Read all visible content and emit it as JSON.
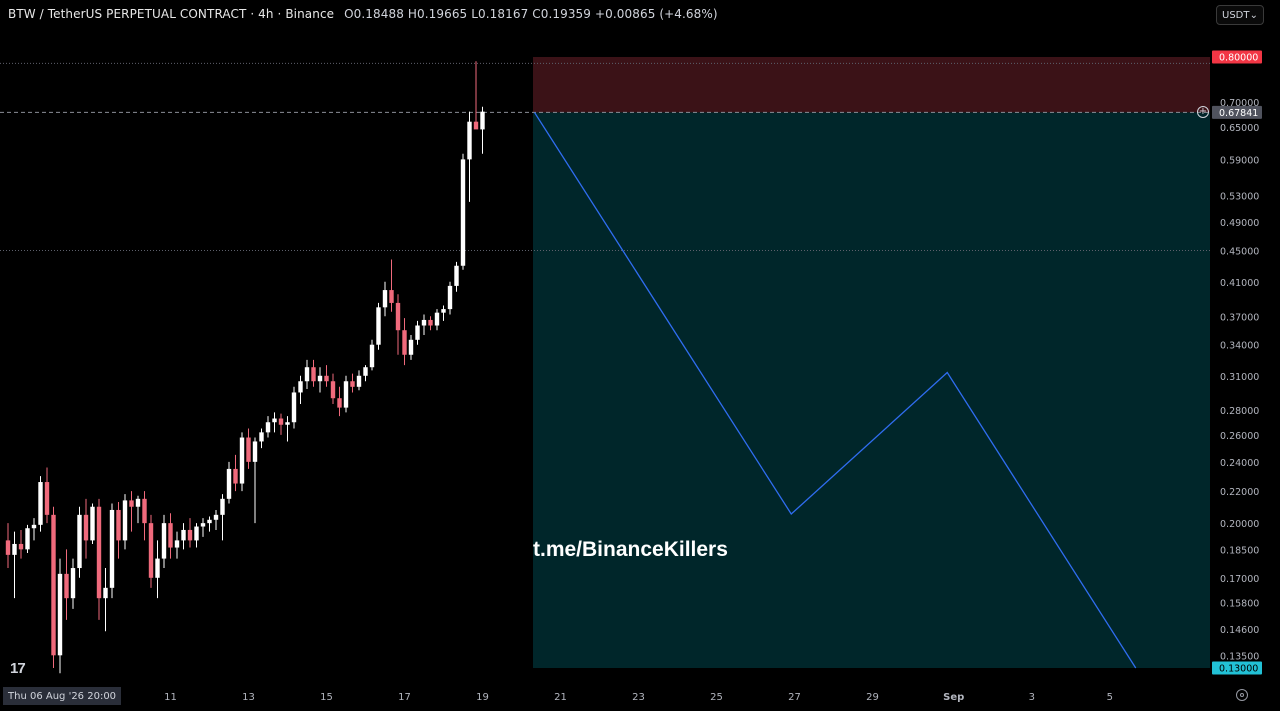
{
  "header": {
    "title": "BTW / TetherUS PERPETUAL CONTRACT · 4h · Binance",
    "ohlc": "O0.18488 H0.19665 L0.18167 C0.19359",
    "change": "+0.00865 (+4.68%)"
  },
  "currency": {
    "label": "USDT",
    "icon": "chevron-down-icon"
  },
  "watermark": "t.me/BinanceKillers",
  "date_badge": "Thu 06 Aug '26   20:00",
  "logo": "17",
  "colors": {
    "background": "#000000",
    "up": "#ffffff",
    "down": "#f06a7c",
    "stop_zone": "#3b1217",
    "target_zone": "#00262a",
    "projection": "#2f6df0",
    "stop_label": "#f23645",
    "target_label": "#22c1d6",
    "current_label": "#50535e"
  },
  "chart_data": {
    "type": "candlestick",
    "x_ticks": [
      {
        "label": "11",
        "index": 25
      },
      {
        "label": "13",
        "index": 37
      },
      {
        "label": "15",
        "index": 49
      },
      {
        "label": "17",
        "index": 61
      },
      {
        "label": "19",
        "index": 73
      },
      {
        "label": "21",
        "index": 85
      },
      {
        "label": "23",
        "index": 97
      },
      {
        "label": "25",
        "index": 109
      },
      {
        "label": "27",
        "index": 121
      },
      {
        "label": "29",
        "index": 133
      },
      {
        "label": "Sep",
        "index": 145.5
      },
      {
        "label": "3",
        "index": 157.5
      },
      {
        "label": "5",
        "index": 169.5
      }
    ],
    "y_ticks": [
      "0.70000",
      "0.65000",
      "0.59000",
      "0.53000",
      "0.49000",
      "0.45000",
      "0.41000",
      "0.37000",
      "0.34000",
      "0.31000",
      "0.28000",
      "0.26000",
      "0.24000",
      "0.22000",
      "0.20000",
      "0.18500",
      "0.17000",
      "0.15800",
      "0.14600",
      "0.13500"
    ],
    "y_tick_values": [
      0.7,
      0.65,
      0.59,
      0.53,
      0.49,
      0.45,
      0.41,
      0.37,
      0.34,
      0.31,
      0.28,
      0.26,
      0.24,
      0.22,
      0.2,
      0.185,
      0.17,
      0.158,
      0.146,
      0.135
    ],
    "ylim": [
      0.13,
      0.8
    ],
    "y_scale": "log",
    "candles": [
      [
        0.19,
        0.2,
        0.175,
        0.182
      ],
      [
        0.182,
        0.195,
        0.16,
        0.188
      ],
      [
        0.188,
        0.196,
        0.18,
        0.185
      ],
      [
        0.185,
        0.199,
        0.183,
        0.197
      ],
      [
        0.197,
        0.203,
        0.19,
        0.199
      ],
      [
        0.199,
        0.23,
        0.195,
        0.226
      ],
      [
        0.226,
        0.236,
        0.2,
        0.205
      ],
      [
        0.205,
        0.21,
        0.13,
        0.135
      ],
      [
        0.135,
        0.18,
        0.128,
        0.172
      ],
      [
        0.172,
        0.185,
        0.15,
        0.16
      ],
      [
        0.16,
        0.18,
        0.155,
        0.175
      ],
      [
        0.175,
        0.21,
        0.17,
        0.205
      ],
      [
        0.205,
        0.215,
        0.18,
        0.19
      ],
      [
        0.19,
        0.212,
        0.188,
        0.21
      ],
      [
        0.21,
        0.215,
        0.15,
        0.16
      ],
      [
        0.16,
        0.175,
        0.145,
        0.165
      ],
      [
        0.165,
        0.212,
        0.16,
        0.208
      ],
      [
        0.208,
        0.213,
        0.18,
        0.19
      ],
      [
        0.19,
        0.218,
        0.185,
        0.214
      ],
      [
        0.214,
        0.22,
        0.195,
        0.21
      ],
      [
        0.21,
        0.217,
        0.2,
        0.215
      ],
      [
        0.215,
        0.22,
        0.19,
        0.2
      ],
      [
        0.2,
        0.205,
        0.165,
        0.17
      ],
      [
        0.17,
        0.19,
        0.16,
        0.18
      ],
      [
        0.18,
        0.205,
        0.175,
        0.2
      ],
      [
        0.2,
        0.206,
        0.18,
        0.186
      ],
      [
        0.186,
        0.195,
        0.18,
        0.19
      ],
      [
        0.19,
        0.2,
        0.185,
        0.196
      ],
      [
        0.196,
        0.203,
        0.186,
        0.19
      ],
      [
        0.19,
        0.2,
        0.186,
        0.198
      ],
      [
        0.198,
        0.203,
        0.192,
        0.2
      ],
      [
        0.2,
        0.204,
        0.195,
        0.202
      ],
      [
        0.202,
        0.208,
        0.196,
        0.205
      ],
      [
        0.205,
        0.218,
        0.19,
        0.215
      ],
      [
        0.215,
        0.24,
        0.212,
        0.235
      ],
      [
        0.235,
        0.245,
        0.22,
        0.225
      ],
      [
        0.225,
        0.262,
        0.22,
        0.258
      ],
      [
        0.258,
        0.265,
        0.235,
        0.24
      ],
      [
        0.24,
        0.258,
        0.2,
        0.255
      ],
      [
        0.255,
        0.265,
        0.25,
        0.262
      ],
      [
        0.262,
        0.275,
        0.258,
        0.27
      ],
      [
        0.27,
        0.278,
        0.262,
        0.273
      ],
      [
        0.273,
        0.277,
        0.26,
        0.268
      ],
      [
        0.268,
        0.275,
        0.255,
        0.27
      ],
      [
        0.27,
        0.3,
        0.265,
        0.295
      ],
      [
        0.295,
        0.31,
        0.285,
        0.305
      ],
      [
        0.305,
        0.325,
        0.298,
        0.318
      ],
      [
        0.318,
        0.325,
        0.3,
        0.305
      ],
      [
        0.305,
        0.318,
        0.295,
        0.31
      ],
      [
        0.31,
        0.32,
        0.3,
        0.305
      ],
      [
        0.305,
        0.312,
        0.285,
        0.29
      ],
      [
        0.29,
        0.3,
        0.275,
        0.282
      ],
      [
        0.282,
        0.31,
        0.278,
        0.305
      ],
      [
        0.305,
        0.312,
        0.295,
        0.3
      ],
      [
        0.3,
        0.315,
        0.297,
        0.31
      ],
      [
        0.31,
        0.32,
        0.305,
        0.318
      ],
      [
        0.318,
        0.345,
        0.315,
        0.34
      ],
      [
        0.34,
        0.385,
        0.335,
        0.38
      ],
      [
        0.38,
        0.41,
        0.37,
        0.4
      ],
      [
        0.4,
        0.438,
        0.375,
        0.385
      ],
      [
        0.385,
        0.395,
        0.33,
        0.355
      ],
      [
        0.355,
        0.368,
        0.32,
        0.33
      ],
      [
        0.33,
        0.35,
        0.325,
        0.345
      ],
      [
        0.345,
        0.365,
        0.34,
        0.36
      ],
      [
        0.36,
        0.372,
        0.35,
        0.366
      ],
      [
        0.366,
        0.37,
        0.355,
        0.36
      ],
      [
        0.36,
        0.378,
        0.355,
        0.374
      ],
      [
        0.374,
        0.382,
        0.365,
        0.378
      ],
      [
        0.378,
        0.41,
        0.372,
        0.405
      ],
      [
        0.405,
        0.435,
        0.398,
        0.43
      ],
      [
        0.43,
        0.6,
        0.425,
        0.59
      ],
      [
        0.59,
        0.68,
        0.52,
        0.66
      ],
      [
        0.66,
        0.79,
        0.65,
        0.645
      ],
      [
        0.645,
        0.69,
        0.6,
        0.68
      ]
    ],
    "levels": [
      {
        "name": "stop",
        "value": 0.8,
        "label": "0.80000"
      },
      {
        "name": "entry",
        "value": 0.67841,
        "label": "0.67841"
      },
      {
        "name": "target",
        "value": 0.13,
        "label": "0.13000"
      }
    ],
    "projection": [
      {
        "index": 81,
        "value": 0.67841
      },
      {
        "index": 120.5,
        "value": 0.2055
      },
      {
        "index": 144.5,
        "value": 0.313
      },
      {
        "index": 173.5,
        "value": 0.13
      }
    ],
    "horizontal_lines": [
      0.785,
      0.45
    ]
  }
}
